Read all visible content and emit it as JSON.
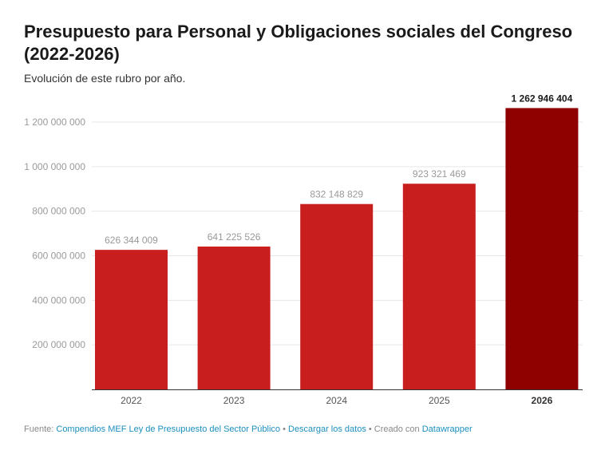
{
  "title": "Presupuesto para Personal y Obligaciones sociales del Congreso (2022-2026)",
  "subtitle": "Evolución de este rubro por año.",
  "chart_data": {
    "type": "bar",
    "categories": [
      "2022",
      "2023",
      "2024",
      "2025",
      "2026"
    ],
    "values": [
      626344009,
      641225526,
      832148829,
      923321469,
      1262946404
    ],
    "value_labels": [
      "626 344 009",
      "641 225 526",
      "832 148 829",
      "923 321 469",
      "1 262 946 404"
    ],
    "yticks": [
      200000000,
      400000000,
      600000000,
      800000000,
      1000000000,
      1200000000
    ],
    "ytick_labels": [
      "200 000 000",
      "400 000 000",
      "600 000 000",
      "800 000 000",
      "1 000 000 000",
      "1 200 000 000"
    ],
    "ylim": [
      0,
      1300000000
    ],
    "grid": true,
    "colors": {
      "default": "#c81e1e",
      "highlight": "#8f0000"
    },
    "highlight_category": "2026"
  },
  "footer": {
    "source_label": "Fuente:",
    "source_link": "Compendios MEF Ley de Presupuesto del Sector Público",
    "sep1": " • ",
    "download_link": "Descargar los datos",
    "sep2": " • Creado con ",
    "tool_link": "Datawrapper"
  }
}
